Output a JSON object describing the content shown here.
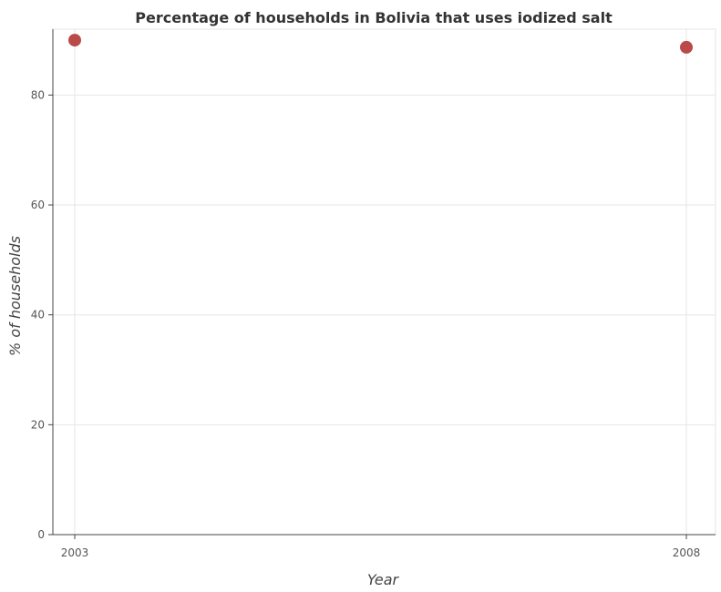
{
  "chart_data": {
    "type": "scatter",
    "title": "Percentage of households in Bolivia that uses iodized salt",
    "xlabel": "Year",
    "ylabel": "% of households",
    "categories": [
      "2003",
      "2008"
    ],
    "series": [
      {
        "name": "",
        "values": [
          90.0,
          88.7
        ]
      }
    ],
    "ylim": [
      0,
      92
    ],
    "yticks": [
      0,
      20,
      40,
      60,
      80
    ],
    "grid": true,
    "marker_color": "#b94a48"
  }
}
